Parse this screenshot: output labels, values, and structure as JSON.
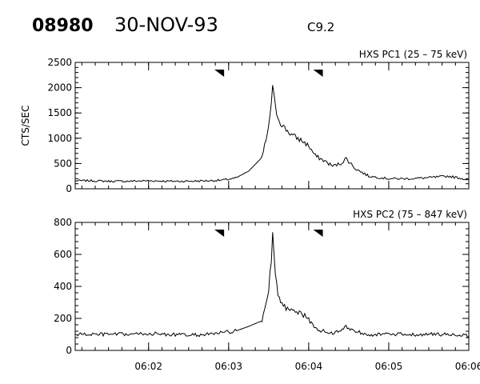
{
  "header": {
    "event_id": "08980",
    "date": "30-NOV-93",
    "goes_class": "C9.2"
  },
  "chart_data": [
    {
      "type": "line",
      "title": "HXS PC1 (25 – 75 keV)",
      "ylabel": "CTS/SEC",
      "xlabel": "",
      "xlim": [
        "06:01:05",
        "06:06:00"
      ],
      "ylim": [
        0,
        2500
      ],
      "yticks": [
        "0",
        "500",
        "1000",
        "1500",
        "2000",
        "2500"
      ],
      "xticks": [],
      "markers": [
        "06:02:53",
        "06:04:07"
      ],
      "series": [
        {
          "x": [
            "06:01:05",
            "06:01:15",
            "06:01:30",
            "06:01:45",
            "06:02:00",
            "06:02:15",
            "06:02:30",
            "06:02:45",
            "06:02:55",
            "06:03:05",
            "06:03:15",
            "06:03:25",
            "06:03:30",
            "06:03:33",
            "06:03:35",
            "06:03:38",
            "06:03:42",
            "06:03:48",
            "06:03:55",
            "06:04:00",
            "06:04:05",
            "06:04:12",
            "06:04:18",
            "06:04:24",
            "06:04:28",
            "06:04:35",
            "06:04:45",
            "06:05:00",
            "06:05:15",
            "06:05:30",
            "06:05:45",
            "06:06:00"
          ],
          "y": [
            160,
            160,
            150,
            150,
            160,
            150,
            150,
            160,
            170,
            210,
            350,
            620,
            1200,
            2000,
            1600,
            1350,
            1200,
            1050,
            950,
            850,
            650,
            550,
            450,
            500,
            600,
            400,
            250,
            200,
            200,
            220,
            250,
            180
          ]
        }
      ]
    },
    {
      "type": "line",
      "title": "HXS PC2 (75 – 847 keV)",
      "ylabel": "",
      "xlabel": "",
      "xlim": [
        "06:01:05",
        "06:06:00"
      ],
      "ylim": [
        0,
        800
      ],
      "yticks": [
        "0",
        "200",
        "400",
        "600",
        "800"
      ],
      "xticks": [
        "06:02",
        "06:03",
        "06:04",
        "06:05",
        "06:06"
      ],
      "markers": [
        "06:02:53",
        "06:04:07"
      ],
      "series": [
        {
          "x": [
            "06:01:05",
            "06:01:15",
            "06:01:30",
            "06:01:45",
            "06:02:00",
            "06:02:15",
            "06:02:30",
            "06:02:45",
            "06:02:55",
            "06:03:05",
            "06:03:15",
            "06:03:25",
            "06:03:30",
            "06:03:33",
            "06:03:35",
            "06:03:38",
            "06:03:42",
            "06:03:48",
            "06:03:55",
            "06:04:00",
            "06:04:05",
            "06:04:12",
            "06:04:18",
            "06:04:24",
            "06:04:28",
            "06:04:35",
            "06:04:45",
            "06:05:00",
            "06:05:15",
            "06:05:30",
            "06:05:45",
            "06:06:00"
          ],
          "y": [
            100,
            100,
            100,
            100,
            105,
            100,
            95,
            100,
            110,
            120,
            150,
            185,
            350,
            700,
            450,
            320,
            270,
            260,
            230,
            190,
            140,
            115,
            110,
            120,
            150,
            120,
            100,
            100,
            100,
            100,
            100,
            95
          ]
        }
      ]
    }
  ]
}
